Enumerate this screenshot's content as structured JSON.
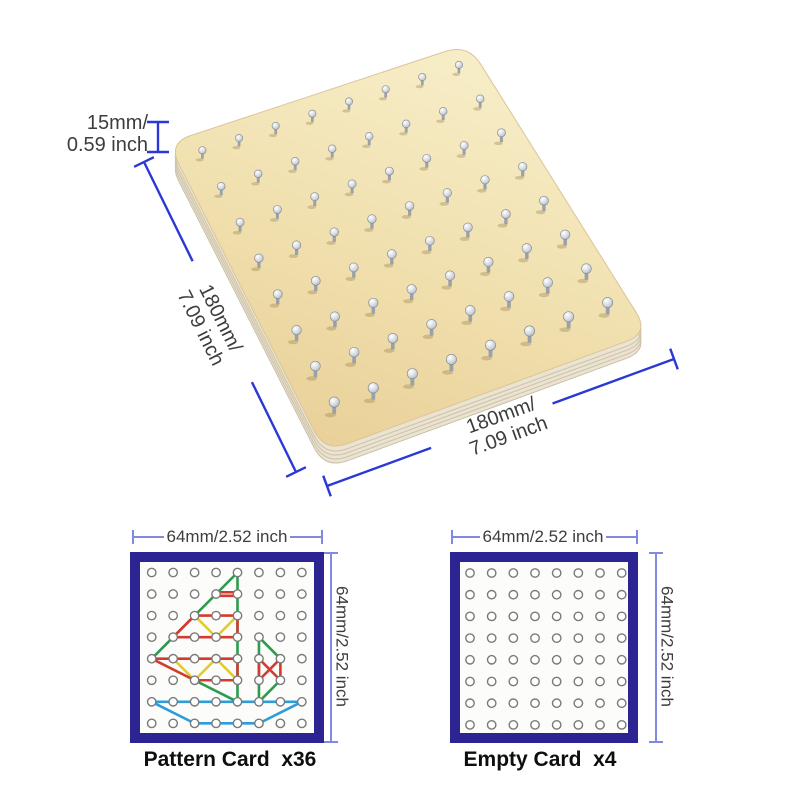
{
  "board": {
    "description": "wooden geoboard with metal pegs",
    "pegs": {
      "rows": 8,
      "cols": 8
    },
    "annotations": {
      "thickness": [
        "15mm/",
        "0.59 inch"
      ],
      "left_edge": [
        "180mm/",
        "7.09 inch"
      ],
      "bottom_edge": [
        "180mm/",
        "7.09 inch"
      ]
    },
    "colors": {
      "wood_light": "#f7edc8",
      "wood_dark": "#e9d098",
      "side_face": "#ece4d2",
      "side_layer_line": "#d0c6ae",
      "dim_line": "#2c38d6",
      "text": "#3d3d3d"
    }
  },
  "cards": {
    "border_color": "#2c2492",
    "card_bg": "#fcfcfa",
    "dot_fill": "#ffffff",
    "dot_stroke": "#7a7a7a",
    "dim_line_color": "#7f8ae0",
    "band_colors": {
      "red": "#d43a2e",
      "green": "#2a9c4c",
      "yellow": "#e2cb2e",
      "blue": "#2e9cd9"
    },
    "pattern": {
      "label": "Pattern Card  x36",
      "top_dim": "64mm/2.52 inch",
      "side_dim": "64mm/2.52 inch",
      "grid": {
        "rows": 8,
        "cols": 8
      },
      "figure_name": "sailboat",
      "segments": [
        [
          "green",
          4,
          0,
          0,
          4
        ],
        [
          "green",
          4,
          0,
          4,
          6
        ],
        [
          "green",
          2,
          5,
          4,
          6
        ],
        [
          "green",
          5,
          3,
          6,
          4
        ],
        [
          "green",
          6,
          5,
          5,
          6
        ],
        [
          "green",
          5,
          3,
          5,
          6
        ],
        [
          "yellow",
          2,
          2,
          3,
          3
        ],
        [
          "yellow",
          3,
          3,
          4,
          2
        ],
        [
          "yellow",
          1,
          4,
          2,
          5
        ],
        [
          "yellow",
          2,
          5,
          3,
          4
        ],
        [
          "yellow",
          3,
          4,
          4,
          5
        ],
        [
          "red",
          3,
          1,
          4,
          1,
          -1.8
        ],
        [
          "red",
          3,
          1,
          4,
          1,
          1.8
        ],
        [
          "red",
          2,
          2,
          4,
          2
        ],
        [
          "red",
          2,
          2,
          1,
          3
        ],
        [
          "red",
          1,
          3,
          4,
          3
        ],
        [
          "red",
          4,
          2,
          4,
          3
        ],
        [
          "red",
          0,
          4,
          4,
          4
        ],
        [
          "red",
          0,
          4,
          2,
          5
        ],
        [
          "red",
          2,
          5,
          4,
          5
        ],
        [
          "red",
          4,
          4,
          4,
          5
        ],
        [
          "red",
          5,
          4,
          5,
          5
        ],
        [
          "red",
          6,
          4,
          6,
          5
        ],
        [
          "red",
          5,
          4,
          6,
          5
        ],
        [
          "red",
          6,
          4,
          5,
          5
        ],
        [
          "blue",
          0,
          6,
          7,
          6
        ],
        [
          "blue",
          0,
          6,
          2,
          7
        ],
        [
          "blue",
          2,
          7,
          5,
          7
        ],
        [
          "blue",
          5,
          7,
          7,
          6
        ]
      ]
    },
    "empty": {
      "label": "Empty Card  x4",
      "top_dim": "64mm/2.52 inch",
      "side_dim": "64mm/2.52 inch",
      "grid": {
        "rows": 8,
        "cols": 8
      }
    }
  }
}
